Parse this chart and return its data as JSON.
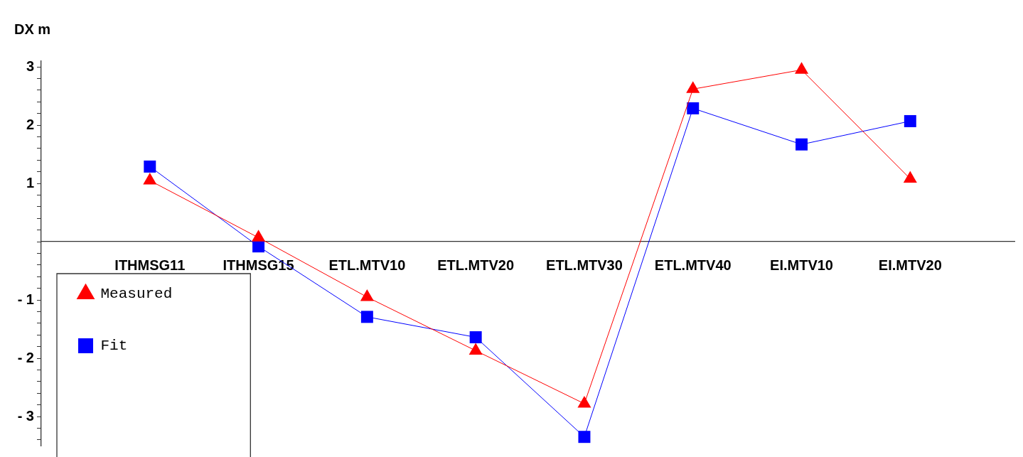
{
  "chart_data": {
    "type": "line",
    "ylabel": "DX m",
    "categories": [
      "ITHMSG11",
      "ITHMSG15",
      "ETL.MTV10",
      "ETL.MTV20",
      "ETL.MTV30",
      "ETL.MTV40",
      "EI.MTV10",
      "EI.MTV20"
    ],
    "series": [
      {
        "name": "Measured",
        "color": "#ff0000",
        "marker": "triangle",
        "values": [
          1.05,
          0.07,
          -0.95,
          -1.87,
          -2.78,
          2.62,
          2.95,
          1.08
        ]
      },
      {
        "name": "Fit",
        "color": "#0000ff",
        "marker": "square",
        "values": [
          1.29,
          -0.08,
          -1.29,
          -1.64,
          -3.35,
          2.29,
          1.67,
          2.07
        ]
      }
    ],
    "ylim": [
      -3.5,
      3.1
    ],
    "yticks": [
      {
        "value": -3.4,
        "label": null
      },
      {
        "value": -3.2,
        "label": null
      },
      {
        "value": -3,
        "label": "- 3"
      },
      {
        "value": -2.8,
        "label": null
      },
      {
        "value": -2.6,
        "label": null
      },
      {
        "value": -2.4,
        "label": null
      },
      {
        "value": -2.2,
        "label": null
      },
      {
        "value": -2,
        "label": "- 2"
      },
      {
        "value": -1.8,
        "label": null
      },
      {
        "value": -1.6,
        "label": null
      },
      {
        "value": -1.4,
        "label": null
      },
      {
        "value": -1.2,
        "label": null
      },
      {
        "value": -1,
        "label": "- 1"
      },
      {
        "value": -0.8,
        "label": null
      },
      {
        "value": -0.6,
        "label": null
      },
      {
        "value": -0.4,
        "label": null
      },
      {
        "value": -0.2,
        "label": null
      },
      {
        "value": 0,
        "label": null
      },
      {
        "value": 0.2,
        "label": null
      },
      {
        "value": 0.4,
        "label": null
      },
      {
        "value": 0.6,
        "label": null
      },
      {
        "value": 0.8,
        "label": null
      },
      1,
      {
        "value": 1.2,
        "label": null
      },
      {
        "value": 1.4,
        "label": null
      },
      {
        "value": 1.6,
        "label": null
      },
      {
        "value": 1.8,
        "label": null
      },
      2,
      {
        "value": 2.2,
        "label": null
      },
      {
        "value": 2.4,
        "label": null
      },
      {
        "value": 2.6,
        "label": null
      },
      {
        "value": 2.8,
        "label": null
      },
      3
    ],
    "grid": false,
    "legend": "bottom left",
    "line_style": "solid"
  }
}
